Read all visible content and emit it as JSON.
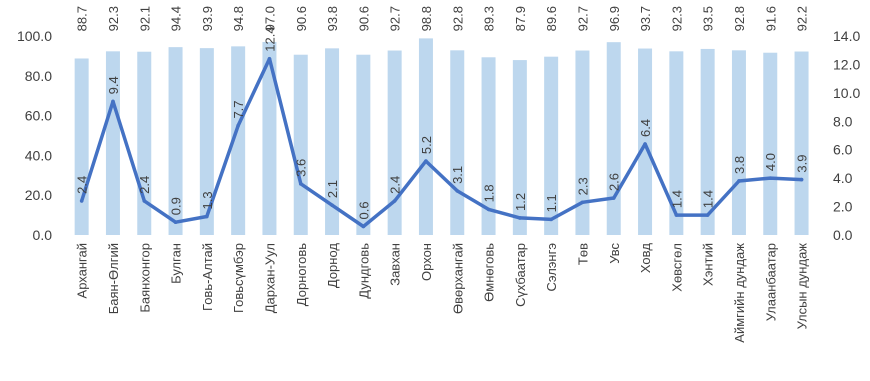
{
  "chart_data": {
    "type": "bar",
    "categories": [
      "Архангай",
      "Баян-Өлгий",
      "Баянхонгор",
      "Булган",
      "Говь-Алтай",
      "Говьсүмбэр",
      "Дархан-Уул",
      "Дорноговь",
      "Дорнод",
      "Дундговь",
      "Завхан",
      "Орхон",
      "Өвөрхангай",
      "Өмнөговь",
      "Сүхбаатар",
      "Сэлэнгэ",
      "Төв",
      "Увс",
      "Ховд",
      "Хөвсгөл",
      "Хэнтий",
      "Аймгийн дундаж",
      "Улаанбаатар",
      "Улсын дундаж"
    ],
    "series": [
      {
        "type": "bar",
        "axis": "left",
        "color": "#bdd7ee",
        "values": [
          88.7,
          92.3,
          92.1,
          94.4,
          93.9,
          94.8,
          97.0,
          90.6,
          93.8,
          90.6,
          92.7,
          98.8,
          92.8,
          89.3,
          87.9,
          89.6,
          92.7,
          96.9,
          93.7,
          92.3,
          93.5,
          92.8,
          91.6,
          92.2
        ],
        "labels": [
          "88.7",
          "92.3",
          "92.1",
          "94.4",
          "93.9",
          "94.8",
          "97.0",
          "90.6",
          "93.8",
          "90.6",
          "92.7",
          "98.8",
          "92.8",
          "89.3",
          "87.9",
          "89.6",
          "92.7",
          "96.9",
          "93.7",
          "92.3",
          "93.5",
          "92.8",
          "91.6",
          "92.2"
        ]
      },
      {
        "type": "line",
        "axis": "right",
        "color": "#4472c4",
        "values": [
          2.4,
          9.4,
          2.4,
          0.9,
          1.3,
          7.7,
          12.4,
          3.6,
          2.1,
          0.6,
          2.4,
          5.2,
          3.1,
          1.8,
          1.2,
          1.1,
          2.3,
          2.6,
          6.4,
          1.4,
          1.4,
          3.8,
          4.0,
          3.9
        ],
        "labels": [
          "2.4",
          "9.4",
          "2.4",
          "0.9",
          "1.3",
          "7.7",
          "12.4",
          "3.6",
          "2.1",
          "0.6",
          "2.4",
          "5.2",
          "3.1",
          "1.8",
          "1.2",
          "1.1",
          "2.3",
          "2.6",
          "6.4",
          "1.4",
          "1.4",
          "3.8",
          "4.0",
          "3.9"
        ]
      }
    ],
    "y_left": {
      "range": [
        0,
        100
      ],
      "ticks": [
        "0.0",
        "20.0",
        "40.0",
        "60.0",
        "80.0",
        "100.0"
      ]
    },
    "y_right": {
      "range": [
        0,
        14
      ],
      "ticks": [
        "0.0",
        "2.0",
        "4.0",
        "6.0",
        "8.0",
        "10.0",
        "12.0",
        "14.0"
      ]
    },
    "grid": false,
    "legend": "none"
  }
}
